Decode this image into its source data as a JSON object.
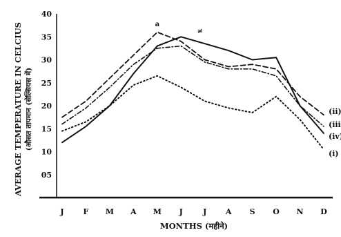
{
  "chart_data": {
    "type": "line",
    "categories": [
      "J",
      "F",
      "M",
      "A",
      "M",
      "J",
      "J",
      "A",
      "S",
      "O",
      "N",
      "D"
    ],
    "xlabel": "MONTHS (महीने)",
    "ylabel": "AVERAGE TEMPERATURE IN CELCIUS",
    "ylabel_secondary": "(औसत तापमान (सेल्सियस में)",
    "yticks": [
      "40",
      "35",
      "30",
      "25",
      "20",
      "15",
      "10",
      "05"
    ],
    "ytick_values": [
      40,
      35,
      30,
      25,
      20,
      15,
      10,
      5
    ],
    "ylim": [
      0,
      40
    ],
    "grid": false,
    "legend": "labels at right end of each line",
    "annotations": [
      {
        "text": "a",
        "x_index": 4,
        "y": 37.3
      },
      {
        "text": "≠",
        "x_index": 5.8,
        "y": 35.8
      }
    ],
    "series": [
      {
        "name": "(i)",
        "style": "solid",
        "values": [
          12,
          15.5,
          20,
          27,
          33,
          35,
          33.5,
          32,
          30,
          30.5,
          20,
          14
        ]
      },
      {
        "name": "(ii)",
        "style": "dashed",
        "values": [
          17.5,
          21,
          26,
          31,
          36,
          34,
          30,
          28.5,
          29,
          28,
          22,
          18
        ]
      },
      {
        "name": "(iii)",
        "style": "dashdot",
        "values": [
          16,
          19.5,
          24,
          29,
          32.5,
          33,
          29.5,
          28,
          28,
          26.5,
          20,
          15.5
        ]
      },
      {
        "name": "(iv)",
        "style": "dotted",
        "values": [
          14.5,
          16.5,
          20,
          24.5,
          26.5,
          24,
          21,
          19.5,
          18.5,
          22,
          17,
          10.5
        ]
      }
    ],
    "series_label_order": [
      "(ii)",
      "(iii)",
      "(iv)",
      "(i)"
    ]
  }
}
